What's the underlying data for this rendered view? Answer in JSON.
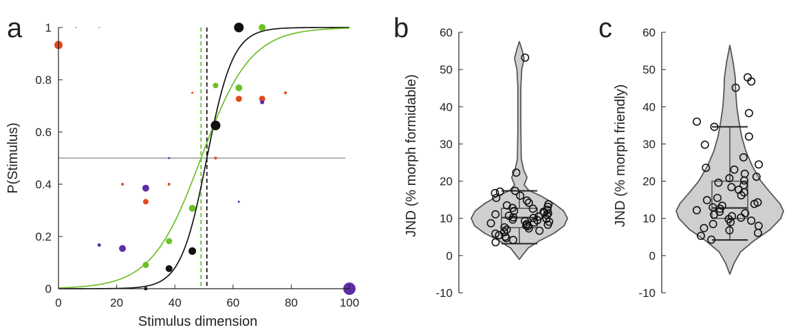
{
  "colors": {
    "black": "#111111",
    "green": "#6cc024",
    "orange": "#e04a1c",
    "purple": "#5b2ea6",
    "violin_fill": "#cfcfcf",
    "violin_edge": "#555555"
  },
  "chart_data": [
    {
      "panel": "a",
      "type": "scatter",
      "xlabel": "Stimulus dimension",
      "ylabel": "P(Stimulus)",
      "xlim": [
        0,
        100
      ],
      "ylim": [
        0,
        1
      ],
      "xticks": [
        "0",
        "20",
        "40",
        "60",
        "80",
        "100"
      ],
      "yticks": [
        "0",
        "0.2",
        "0.4",
        "0.6",
        "0.8",
        "1"
      ],
      "threshold_line_y": 0.5,
      "threshold_x": {
        "green": 49,
        "black": 51
      },
      "curves": [
        {
          "color": "black",
          "mu": 51,
          "sigma": 4.5
        },
        {
          "color": "green",
          "mu": 49,
          "sigma": 8.5
        }
      ],
      "series": [
        {
          "color": "black",
          "points": [
            {
              "x": 30,
              "y": 0.0,
              "s": 2.5
            },
            {
              "x": 38,
              "y": 0.077,
              "s": 5
            },
            {
              "x": 46,
              "y": 0.144,
              "s": 5.5
            },
            {
              "x": 54,
              "y": 0.625,
              "s": 7
            },
            {
              "x": 62,
              "y": 1.0,
              "s": 7
            }
          ]
        },
        {
          "color": "green",
          "points": [
            {
              "x": 6,
              "y": 1.0,
              "s": 1
            },
            {
              "x": 14,
              "y": 1.0,
              "s": 1
            },
            {
              "x": 30,
              "y": 0.091,
              "s": 4.5
            },
            {
              "x": 38,
              "y": 0.182,
              "s": 4.5
            },
            {
              "x": 46,
              "y": 0.308,
              "s": 5
            },
            {
              "x": 54,
              "y": 0.778,
              "s": 4
            },
            {
              "x": 62,
              "y": 0.769,
              "s": 5
            },
            {
              "x": 70,
              "y": 1.0,
              "s": 5
            }
          ]
        },
        {
          "color": "orange",
          "points": [
            {
              "x": 0,
              "y": 0.933,
              "s": 6
            },
            {
              "x": 22,
              "y": 0.4,
              "s": 2
            },
            {
              "x": 30,
              "y": 0.333,
              "s": 4
            },
            {
              "x": 38,
              "y": 0.4,
              "s": 2
            },
            {
              "x": 46,
              "y": 0.75,
              "s": 1.5
            },
            {
              "x": 54,
              "y": 0.5,
              "s": 2
            },
            {
              "x": 62,
              "y": 0.727,
              "s": 4.5
            },
            {
              "x": 70,
              "y": 0.727,
              "s": 4.5
            },
            {
              "x": 78,
              "y": 0.75,
              "s": 2
            }
          ]
        },
        {
          "color": "purple",
          "points": [
            {
              "x": 14,
              "y": 0.167,
              "s": 2.5
            },
            {
              "x": 22,
              "y": 0.154,
              "s": 5
            },
            {
              "x": 30,
              "y": 0.385,
              "s": 5
            },
            {
              "x": 38,
              "y": 0.5,
              "s": 1.5
            },
            {
              "x": 62,
              "y": 0.333,
              "s": 1.5
            },
            {
              "x": 70,
              "y": 0.714,
              "s": 3
            },
            {
              "x": 100,
              "y": 0.0,
              "s": 9
            }
          ]
        }
      ]
    },
    {
      "panel": "b",
      "type": "violin",
      "ylabel": "JND (% morph formidable)",
      "ylim": [
        -10,
        60
      ],
      "yticks": [
        "-10",
        "0",
        "10",
        "20",
        "30",
        "40",
        "50",
        "60"
      ],
      "box": {
        "q1": 7.5,
        "median": 10.2,
        "q3": 12.7,
        "whisker_low": 3.2,
        "whisker_high": 17.4
      },
      "violin_profile": [
        {
          "y": -1,
          "w": 0.0
        },
        {
          "y": 2,
          "w": 0.18
        },
        {
          "y": 4,
          "w": 0.42
        },
        {
          "y": 6,
          "w": 0.72
        },
        {
          "y": 8,
          "w": 0.93
        },
        {
          "y": 10,
          "w": 1.0
        },
        {
          "y": 12,
          "w": 0.92
        },
        {
          "y": 14,
          "w": 0.72
        },
        {
          "y": 16,
          "w": 0.45
        },
        {
          "y": 17.5,
          "w": 0.2
        },
        {
          "y": 19,
          "w": 0.1
        },
        {
          "y": 21,
          "w": 0.16
        },
        {
          "y": 23,
          "w": 0.09
        },
        {
          "y": 26,
          "w": 0.04
        },
        {
          "y": 35,
          "w": 0.03
        },
        {
          "y": 45,
          "w": 0.03
        },
        {
          "y": 50,
          "w": 0.05
        },
        {
          "y": 53,
          "w": 0.1
        },
        {
          "y": 55.5,
          "w": 0.05
        },
        {
          "y": 57.5,
          "w": 0.0
        }
      ],
      "points": [
        53.2,
        22.3,
        17.4,
        17.2,
        16.8,
        16.1,
        15.5,
        14.8,
        14.2,
        13.8,
        13.5,
        13.1,
        12.8,
        12.6,
        12.3,
        12.0,
        11.8,
        11.6,
        11.3,
        11.1,
        10.9,
        10.7,
        10.5,
        10.3,
        10.1,
        9.9,
        9.7,
        9.5,
        9.3,
        9.1,
        8.9,
        8.7,
        8.5,
        8.3,
        8.1,
        7.9,
        7.6,
        7.3,
        7.0,
        6.7,
        6.3,
        5.9,
        5.5,
        5.1,
        4.7,
        4.2,
        3.6
      ]
    },
    {
      "panel": "c",
      "type": "violin",
      "ylabel": "JND (% morph friendly)",
      "ylim": [
        -10,
        60
      ],
      "yticks": [
        "-10",
        "0",
        "10",
        "20",
        "30",
        "40",
        "50",
        "60"
      ],
      "box": {
        "q1": 10,
        "median": 12.8,
        "q3": 20,
        "whisker_low": 4.2,
        "whisker_high": 34.6
      },
      "violin_profile": [
        {
          "y": -5,
          "w": 0.0
        },
        {
          "y": -2,
          "w": 0.08
        },
        {
          "y": 1,
          "w": 0.2
        },
        {
          "y": 4,
          "w": 0.45
        },
        {
          "y": 7,
          "w": 0.75
        },
        {
          "y": 10,
          "w": 0.95
        },
        {
          "y": 12,
          "w": 1.0
        },
        {
          "y": 14,
          "w": 0.93
        },
        {
          "y": 17,
          "w": 0.75
        },
        {
          "y": 20,
          "w": 0.58
        },
        {
          "y": 24,
          "w": 0.42
        },
        {
          "y": 28,
          "w": 0.3
        },
        {
          "y": 32,
          "w": 0.22
        },
        {
          "y": 36,
          "w": 0.17
        },
        {
          "y": 40,
          "w": 0.13
        },
        {
          "y": 44,
          "w": 0.11
        },
        {
          "y": 48,
          "w": 0.1
        },
        {
          "y": 52,
          "w": 0.06
        },
        {
          "y": 56.5,
          "w": 0.0
        }
      ],
      "points": [
        47.9,
        46.8,
        45.1,
        38.3,
        36.0,
        34.6,
        32.0,
        29.8,
        26.4,
        24.5,
        23.6,
        23.1,
        22.0,
        21.2,
        20.8,
        20.2,
        19.6,
        18.9,
        18.4,
        17.7,
        17.0,
        16.2,
        15.5,
        14.9,
        14.3,
        13.9,
        13.4,
        13.0,
        12.6,
        12.2,
        11.8,
        11.4,
        11.0,
        10.6,
        10.2,
        9.8,
        9.4,
        9.0,
        8.5,
        8.0,
        7.4,
        6.8,
        6.1,
        5.3,
        4.3
      ]
    }
  ]
}
